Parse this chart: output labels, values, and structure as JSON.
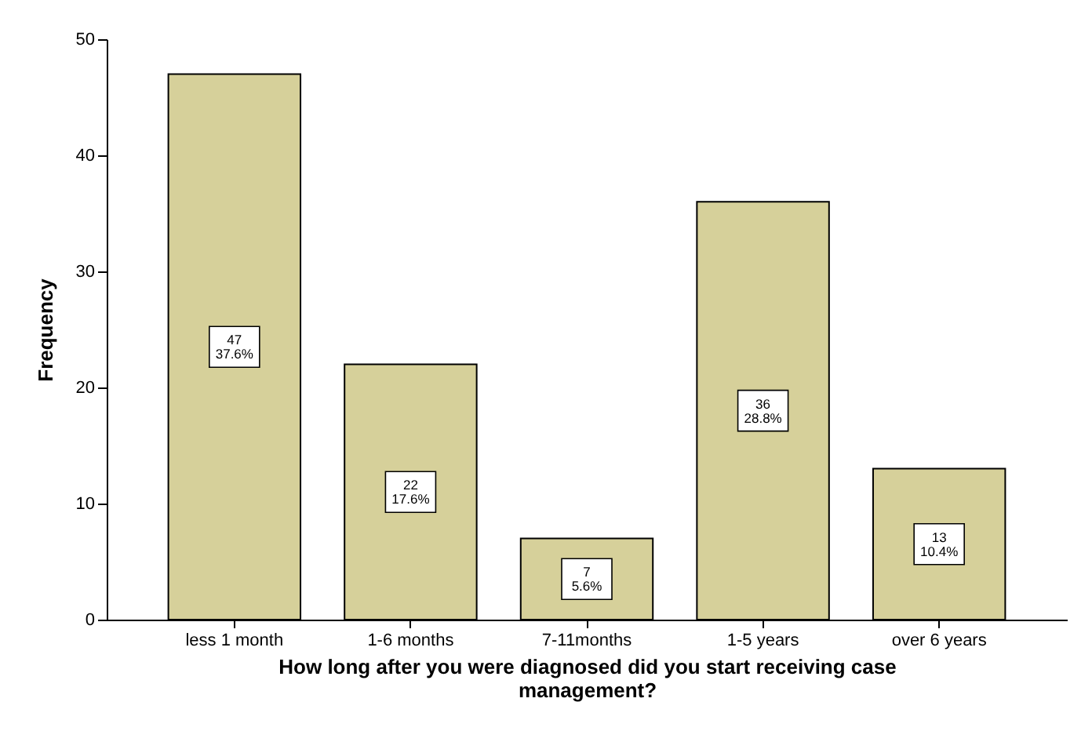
{
  "chart_data": {
    "type": "bar",
    "xlabel": "How long after you were diagnosed did you start receiving case management?",
    "ylabel": "Frequency",
    "categories": [
      "less 1 month",
      "1-6 months",
      "7-11months",
      "1-5 years",
      "over 6 years"
    ],
    "values": [
      47,
      22,
      7,
      36,
      13
    ],
    "value_labels": [
      "47\n37.6%",
      "22\n17.6%",
      "7\n5.6%",
      "36\n28.8%",
      "13\n10.4%"
    ],
    "color": "#d6d09a",
    "ylim": [
      0,
      50
    ],
    "yticks": [
      0,
      10,
      20,
      30,
      40,
      50
    ],
    "grid": false
  }
}
